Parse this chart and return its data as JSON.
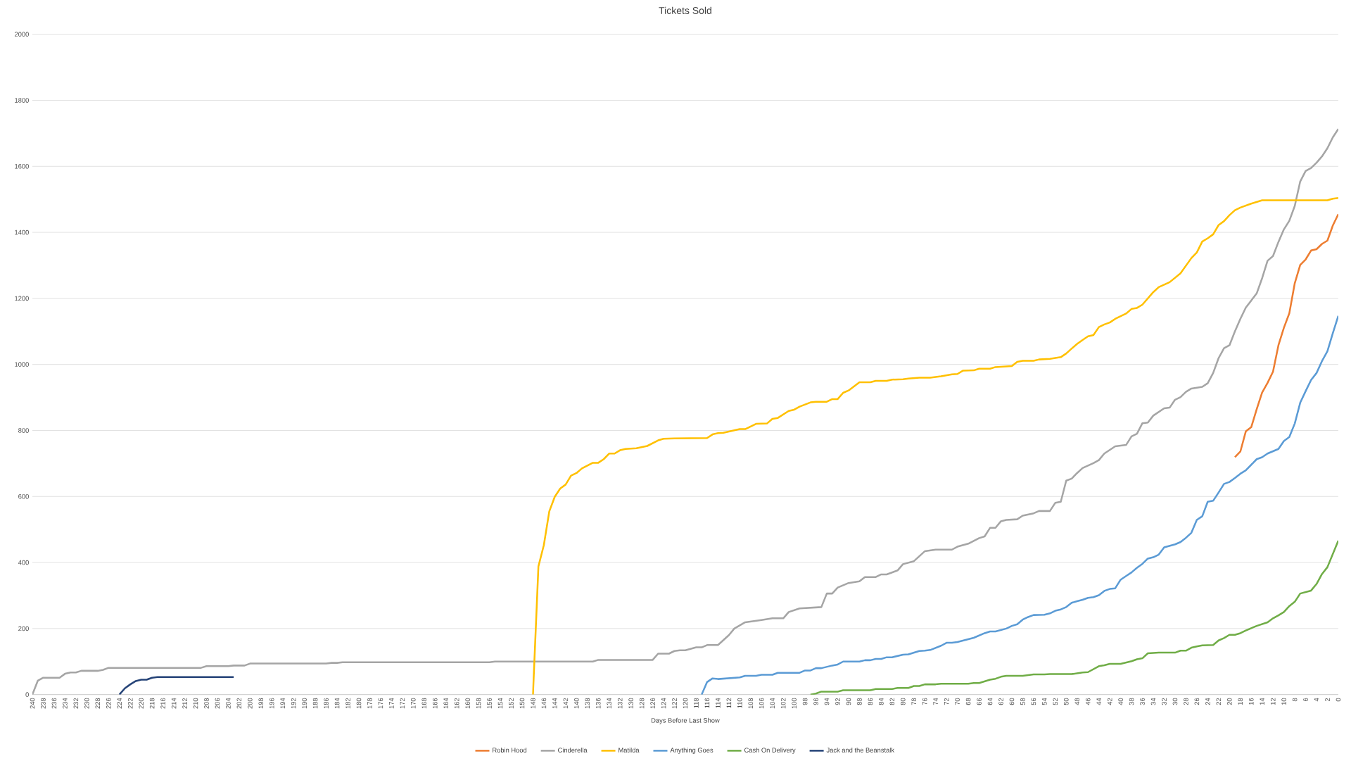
{
  "chart_data": {
    "type": "line",
    "title": "Tickets Sold",
    "xlabel": "Days Before Last Show",
    "xlim": [
      240,
      0
    ],
    "xticks": [
      240,
      238,
      236,
      234,
      232,
      230,
      228,
      226,
      224,
      222,
      220,
      218,
      216,
      214,
      212,
      210,
      208,
      206,
      204,
      202,
      200,
      198,
      196,
      194,
      192,
      190,
      188,
      186,
      184,
      182,
      180,
      178,
      176,
      174,
      172,
      170,
      168,
      166,
      164,
      162,
      160,
      158,
      156,
      154,
      152,
      150,
      148,
      146,
      144,
      142,
      140,
      138,
      136,
      134,
      132,
      130,
      128,
      126,
      124,
      122,
      120,
      118,
      116,
      114,
      112,
      110,
      108,
      106,
      104,
      102,
      100,
      98,
      96,
      94,
      92,
      90,
      88,
      86,
      84,
      82,
      80,
      78,
      76,
      74,
      72,
      70,
      68,
      66,
      64,
      62,
      60,
      58,
      56,
      54,
      52,
      50,
      48,
      46,
      44,
      42,
      40,
      38,
      36,
      34,
      32,
      30,
      28,
      26,
      24,
      22,
      20,
      18,
      16,
      14,
      12,
      10,
      8,
      6,
      4,
      2,
      0
    ],
    "ylim": [
      0,
      2000
    ],
    "yticks": [
      0,
      200,
      400,
      600,
      800,
      1000,
      1200,
      1400,
      1600,
      1800,
      2000
    ],
    "grid": "y",
    "legend": "bottom",
    "marker": "none",
    "line_style": "solid",
    "series": [
      {
        "name": "Robin Hood",
        "color": "#ed7d31",
        "x": [
          19,
          18,
          17,
          16,
          15,
          14,
          13,
          12,
          11,
          10,
          9,
          8,
          7,
          6,
          5,
          4,
          3,
          2,
          1,
          0
        ],
        "values": [
          719,
          736,
          797,
          810,
          864,
          915,
          944,
          978,
          1058,
          1111,
          1155,
          1246,
          1301,
          1318,
          1345,
          1349,
          1365,
          1375,
          1421,
          1455
        ]
      },
      {
        "name": "Cinderella",
        "color": "#a5a5a5",
        "x": [
          240,
          239,
          238,
          235,
          234,
          233,
          232,
          231,
          228,
          227,
          226,
          209,
          208,
          204,
          203,
          201,
          200,
          186,
          185,
          184,
          183,
          156,
          155,
          137,
          136,
          126,
          125,
          123,
          122,
          121,
          120,
          118,
          117,
          116,
          114,
          112,
          111,
          109,
          106,
          104,
          102,
          101,
          99,
          95,
          94,
          93,
          92,
          90,
          88,
          87,
          85,
          84,
          83,
          81,
          80,
          78,
          76,
          74,
          71,
          70,
          68,
          66,
          65,
          64,
          63,
          62,
          61,
          59,
          58,
          56,
          55,
          53,
          52,
          51,
          50,
          49,
          48,
          47,
          45,
          44,
          43,
          41,
          39,
          38,
          37,
          36,
          35,
          34,
          32,
          31,
          30,
          29,
          28,
          27,
          25,
          24,
          23,
          22,
          21,
          20,
          19,
          18,
          17,
          15,
          14,
          13,
          12,
          11,
          10,
          9,
          8,
          7,
          6,
          5,
          4,
          3,
          2,
          1,
          0
        ],
        "values": [
          0,
          42,
          51,
          51,
          63,
          67,
          67,
          72,
          72,
          75,
          81,
          81,
          86,
          86,
          88,
          88,
          94,
          94,
          96,
          96,
          98,
          98,
          100,
          100,
          105,
          105,
          124,
          124,
          132,
          134,
          134,
          143,
          143,
          150,
          150,
          180,
          200,
          219,
          226,
          231,
          231,
          250,
          261,
          265,
          306,
          306,
          324,
          338,
          343,
          356,
          356,
          364,
          364,
          376,
          395,
          404,
          434,
          439,
          439,
          448,
          457,
          474,
          479,
          505,
          505,
          525,
          529,
          531,
          542,
          549,
          556,
          556,
          581,
          584,
          648,
          654,
          671,
          686,
          701,
          710,
          730,
          752,
          756,
          782,
          790,
          822,
          824,
          845,
          867,
          869,
          893,
          901,
          917,
          927,
          932,
          943,
          974,
          1019,
          1049,
          1058,
          1100,
          1138,
          1172,
          1215,
          1261,
          1314,
          1328,
          1371,
          1409,
          1435,
          1480,
          1554,
          1586,
          1595,
          1611,
          1630,
          1655,
          1688,
          1713
        ]
      },
      {
        "name": "Matilda",
        "color": "#ffc000",
        "x": [
          148,
          147,
          146,
          145,
          144,
          143,
          142,
          141,
          140,
          139,
          137,
          136,
          135,
          134,
          133,
          132,
          131,
          129,
          127,
          125,
          124,
          122,
          116,
          115,
          114,
          113,
          110,
          109,
          107,
          105,
          104,
          103,
          101,
          100,
          99,
          97,
          96,
          94,
          93,
          92,
          91,
          90,
          88,
          86,
          85,
          83,
          82,
          80,
          79,
          77,
          75,
          73,
          71,
          70,
          69,
          67,
          66,
          64,
          63,
          60,
          59,
          58,
          56,
          55,
          53,
          51,
          50,
          49,
          48,
          47,
          46,
          45,
          44,
          43,
          42,
          41,
          39,
          38,
          37,
          36,
          34,
          33,
          31,
          29,
          27,
          26,
          25,
          24,
          23,
          22,
          21,
          20,
          19,
          18,
          16,
          14,
          2,
          1,
          0
        ],
        "values": [
          0,
          388,
          453,
          555,
          599,
          624,
          636,
          663,
          671,
          685,
          702,
          702,
          713,
          730,
          730,
          740,
          744,
          746,
          753,
          770,
          775,
          776,
          777,
          788,
          792,
          793,
          804,
          804,
          820,
          821,
          835,
          838,
          859,
          863,
          872,
          885,
          887,
          887,
          895,
          895,
          914,
          921,
          946,
          946,
          950,
          950,
          954,
          955,
          957,
          960,
          960,
          964,
          970,
          971,
          981,
          982,
          987,
          987,
          992,
          995,
          1008,
          1011,
          1011,
          1015,
          1017,
          1022,
          1033,
          1048,
          1062,
          1074,
          1085,
          1089,
          1113,
          1121,
          1127,
          1138,
          1154,
          1168,
          1171,
          1181,
          1219,
          1234,
          1249,
          1276,
          1322,
          1339,
          1372,
          1382,
          1394,
          1422,
          1434,
          1452,
          1467,
          1475,
          1487,
          1497,
          1497,
          1502,
          1504
        ]
      },
      {
        "name": "Anything Goes",
        "color": "#5b9bd5",
        "x": [
          117,
          116,
          115,
          114,
          110,
          109,
          107,
          106,
          104,
          103,
          99,
          98,
          97,
          96,
          95,
          93,
          92,
          91,
          88,
          87,
          86,
          85,
          84,
          83,
          82,
          80,
          79,
          77,
          76,
          75,
          73,
          72,
          71,
          70,
          67,
          65,
          64,
          63,
          61,
          60,
          59,
          58,
          57,
          56,
          54,
          53,
          52,
          51,
          50,
          49,
          48,
          47,
          46,
          45,
          44,
          43,
          42,
          41,
          40,
          39,
          38,
          37,
          36,
          35,
          34,
          33,
          32,
          30,
          29,
          28,
          27,
          26,
          25,
          24,
          23,
          22,
          21,
          20,
          19,
          18,
          17,
          16,
          15,
          14,
          13,
          11,
          10,
          9,
          8,
          7,
          6,
          5,
          4,
          3,
          2,
          1,
          0
        ],
        "values": [
          0,
          38,
          49,
          47,
          52,
          57,
          57,
          60,
          60,
          66,
          66,
          73,
          73,
          80,
          80,
          88,
          91,
          100,
          100,
          104,
          104,
          108,
          108,
          113,
          113,
          121,
          122,
          132,
          133,
          135,
          148,
          157,
          157,
          159,
          172,
          186,
          191,
          191,
          200,
          208,
          213,
          227,
          235,
          241,
          242,
          246,
          254,
          258,
          265,
          278,
          283,
          287,
          293,
          295,
          301,
          314,
          320,
          322,
          348,
          359,
          370,
          384,
          396,
          412,
          416,
          424,
          446,
          455,
          462,
          475,
          490,
          529,
          540,
          584,
          587,
          612,
          638,
          644,
          656,
          669,
          679,
          696,
          713,
          719,
          730,
          744,
          768,
          780,
          821,
          884,
          919,
          953,
          974,
          1010,
          1040,
          1095,
          1147
        ]
      },
      {
        "name": "Cash On Delivery",
        "color": "#70ad47",
        "x": [
          97,
          96,
          95,
          92,
          91,
          86,
          85,
          82,
          81,
          79,
          78,
          77,
          76,
          74,
          73,
          68,
          67,
          66,
          64,
          63,
          62,
          61,
          58,
          56,
          54,
          53,
          49,
          47,
          46,
          44,
          43,
          42,
          40,
          38,
          37,
          36,
          35,
          33,
          30,
          29,
          28,
          27,
          26,
          25,
          23,
          22,
          21,
          20,
          19,
          18,
          17,
          16,
          15,
          13,
          12,
          11,
          10,
          9,
          8,
          7,
          5,
          4,
          3,
          2,
          0
        ],
        "values": [
          0,
          3,
          9,
          9,
          13,
          13,
          17,
          17,
          20,
          20,
          26,
          26,
          31,
          31,
          33,
          33,
          35,
          35,
          45,
          48,
          54,
          57,
          57,
          61,
          61,
          62,
          62,
          67,
          68,
          86,
          89,
          93,
          93,
          101,
          107,
          110,
          125,
          127,
          127,
          133,
          133,
          142,
          146,
          149,
          150,
          164,
          171,
          181,
          181,
          186,
          194,
          201,
          208,
          219,
          231,
          240,
          250,
          268,
          281,
          306,
          315,
          335,
          365,
          386,
          466
        ]
      },
      {
        "name": "Jack and the Beanstalk",
        "color": "#264478",
        "x": [
          224,
          223,
          222,
          221,
          220,
          219,
          218,
          217,
          203
        ],
        "values": [
          0,
          19,
          31,
          41,
          45,
          45,
          51,
          53,
          53
        ]
      }
    ]
  }
}
